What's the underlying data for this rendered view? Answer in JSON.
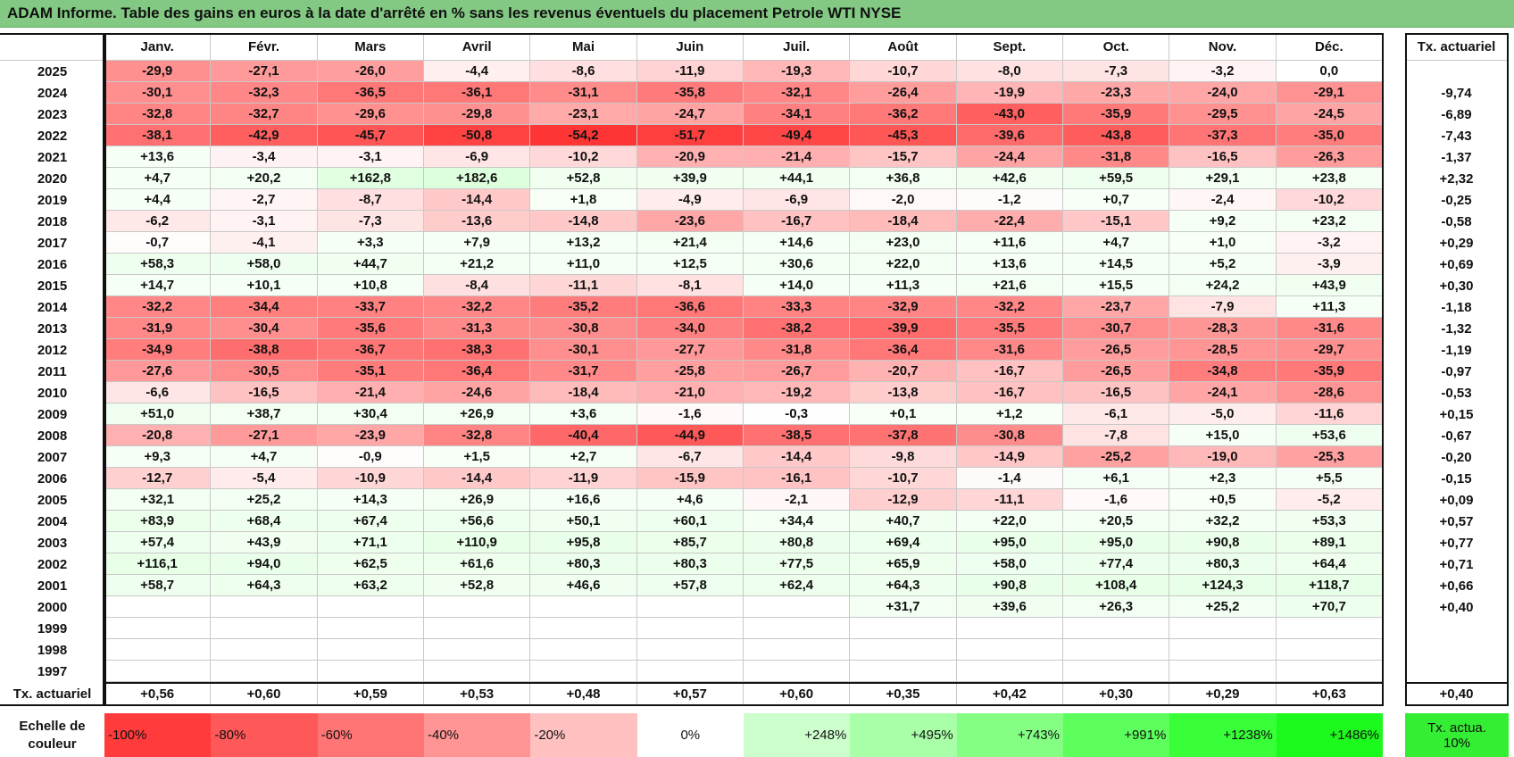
{
  "header": {
    "title": "ADAM Informe. Table des gains en euros à la date d'arrêté en % sans les revenus éventuels du placement Petrole WTI NYSE"
  },
  "table": {
    "columns": [
      "Janv.",
      "Févr.",
      "Mars",
      "Avril",
      "Mai",
      "Juin",
      "Juil.",
      "Août",
      "Sept.",
      "Oct.",
      "Nov.",
      "Déc."
    ],
    "rate_header": "Tx. actuariel",
    "rows": [
      {
        "year": "2025",
        "months": [
          "-29,9",
          "-27,1",
          "-26,0",
          "-4,4",
          "-8,6",
          "-11,9",
          "-19,3",
          "-10,7",
          "-8,0",
          "-7,3",
          "-3,2",
          "0,0"
        ],
        "rate": null
      },
      {
        "year": "2024",
        "months": [
          "-30,1",
          "-32,3",
          "-36,5",
          "-36,1",
          "-31,1",
          "-35,8",
          "-32,1",
          "-26,4",
          "-19,9",
          "-23,3",
          "-24,0",
          "-29,1"
        ],
        "rate": "-9,74"
      },
      {
        "year": "2023",
        "months": [
          "-32,8",
          "-32,7",
          "-29,6",
          "-29,8",
          "-23,1",
          "-24,7",
          "-34,1",
          "-36,2",
          "-43,0",
          "-35,9",
          "-29,5",
          "-24,5"
        ],
        "rate": "-6,89"
      },
      {
        "year": "2022",
        "months": [
          "-38,1",
          "-42,9",
          "-45,7",
          "-50,8",
          "-54,2",
          "-51,7",
          "-49,4",
          "-45,3",
          "-39,6",
          "-43,8",
          "-37,3",
          "-35,0"
        ],
        "rate": "-7,43"
      },
      {
        "year": "2021",
        "months": [
          "+13,6",
          "-3,4",
          "-3,1",
          "-6,9",
          "-10,2",
          "-20,9",
          "-21,4",
          "-15,7",
          "-24,4",
          "-31,8",
          "-16,5",
          "-26,3"
        ],
        "rate": "-1,37"
      },
      {
        "year": "2020",
        "months": [
          "+4,7",
          "+20,2",
          "+162,8",
          "+182,6",
          "+52,8",
          "+39,9",
          "+44,1",
          "+36,8",
          "+42,6",
          "+59,5",
          "+29,1",
          "+23,8"
        ],
        "rate": "+2,32"
      },
      {
        "year": "2019",
        "months": [
          "+4,4",
          "-2,7",
          "-8,7",
          "-14,4",
          "+1,8",
          "-4,9",
          "-6,9",
          "-2,0",
          "-1,2",
          "+0,7",
          "-2,4",
          "-10,2"
        ],
        "rate": "-0,25"
      },
      {
        "year": "2018",
        "months": [
          "-6,2",
          "-3,1",
          "-7,3",
          "-13,6",
          "-14,8",
          "-23,6",
          "-16,7",
          "-18,4",
          "-22,4",
          "-15,1",
          "+9,2",
          "+23,2"
        ],
        "rate": "-0,58"
      },
      {
        "year": "2017",
        "months": [
          "-0,7",
          "-4,1",
          "+3,3",
          "+7,9",
          "+13,2",
          "+21,4",
          "+14,6",
          "+23,0",
          "+11,6",
          "+4,7",
          "+1,0",
          "-3,2"
        ],
        "rate": "+0,29"
      },
      {
        "year": "2016",
        "months": [
          "+58,3",
          "+58,0",
          "+44,7",
          "+21,2",
          "+11,0",
          "+12,5",
          "+30,6",
          "+22,0",
          "+13,6",
          "+14,5",
          "+5,2",
          "-3,9"
        ],
        "rate": "+0,69"
      },
      {
        "year": "2015",
        "months": [
          "+14,7",
          "+10,1",
          "+10,8",
          "-8,4",
          "-11,1",
          "-8,1",
          "+14,0",
          "+11,3",
          "+21,6",
          "+15,5",
          "+24,2",
          "+43,9"
        ],
        "rate": "+0,30"
      },
      {
        "year": "2014",
        "months": [
          "-32,2",
          "-34,4",
          "-33,7",
          "-32,2",
          "-35,2",
          "-36,6",
          "-33,3",
          "-32,9",
          "-32,2",
          "-23,7",
          "-7,9",
          "+11,3"
        ],
        "rate": "-1,18"
      },
      {
        "year": "2013",
        "months": [
          "-31,9",
          "-30,4",
          "-35,6",
          "-31,3",
          "-30,8",
          "-34,0",
          "-38,2",
          "-39,9",
          "-35,5",
          "-30,7",
          "-28,3",
          "-31,6"
        ],
        "rate": "-1,32"
      },
      {
        "year": "2012",
        "months": [
          "-34,9",
          "-38,8",
          "-36,7",
          "-38,3",
          "-30,1",
          "-27,7",
          "-31,8",
          "-36,4",
          "-31,6",
          "-26,5",
          "-28,5",
          "-29,7"
        ],
        "rate": "-1,19"
      },
      {
        "year": "2011",
        "months": [
          "-27,6",
          "-30,5",
          "-35,1",
          "-36,4",
          "-31,7",
          "-25,8",
          "-26,7",
          "-20,7",
          "-16,7",
          "-26,5",
          "-34,8",
          "-35,9"
        ],
        "rate": "-0,97"
      },
      {
        "year": "2010",
        "months": [
          "-6,6",
          "-16,5",
          "-21,4",
          "-24,6",
          "-18,4",
          "-21,0",
          "-19,2",
          "-13,8",
          "-16,7",
          "-16,5",
          "-24,1",
          "-28,6"
        ],
        "rate": "-0,53"
      },
      {
        "year": "2009",
        "months": [
          "+51,0",
          "+38,7",
          "+30,4",
          "+26,9",
          "+3,6",
          "-1,6",
          "-0,3",
          "+0,1",
          "+1,2",
          "-6,1",
          "-5,0",
          "-11,6"
        ],
        "rate": "+0,15"
      },
      {
        "year": "2008",
        "months": [
          "-20,8",
          "-27,1",
          "-23,9",
          "-32,8",
          "-40,4",
          "-44,9",
          "-38,5",
          "-37,8",
          "-30,8",
          "-7,8",
          "+15,0",
          "+53,6"
        ],
        "rate": "-0,67"
      },
      {
        "year": "2007",
        "months": [
          "+9,3",
          "+4,7",
          "-0,9",
          "+1,5",
          "+2,7",
          "-6,7",
          "-14,4",
          "-9,8",
          "-14,9",
          "-25,2",
          "-19,0",
          "-25,3"
        ],
        "rate": "-0,20"
      },
      {
        "year": "2006",
        "months": [
          "-12,7",
          "-5,4",
          "-10,9",
          "-14,4",
          "-11,9",
          "-15,9",
          "-16,1",
          "-10,7",
          "-1,4",
          "+6,1",
          "+2,3",
          "+5,5"
        ],
        "rate": "-0,15"
      },
      {
        "year": "2005",
        "months": [
          "+32,1",
          "+25,2",
          "+14,3",
          "+26,9",
          "+16,6",
          "+4,6",
          "-2,1",
          "-12,9",
          "-11,1",
          "-1,6",
          "+0,5",
          "-5,2"
        ],
        "rate": "+0,09"
      },
      {
        "year": "2004",
        "months": [
          "+83,9",
          "+68,4",
          "+67,4",
          "+56,6",
          "+50,1",
          "+60,1",
          "+34,4",
          "+40,7",
          "+22,0",
          "+20,5",
          "+32,2",
          "+53,3"
        ],
        "rate": "+0,57"
      },
      {
        "year": "2003",
        "months": [
          "+57,4",
          "+43,9",
          "+71,1",
          "+110,9",
          "+95,8",
          "+85,7",
          "+80,8",
          "+69,4",
          "+95,0",
          "+95,0",
          "+90,8",
          "+89,1"
        ],
        "rate": "+0,77"
      },
      {
        "year": "2002",
        "months": [
          "+116,1",
          "+94,0",
          "+62,5",
          "+61,6",
          "+80,3",
          "+80,3",
          "+77,5",
          "+65,9",
          "+58,0",
          "+77,4",
          "+80,3",
          "+64,4"
        ],
        "rate": "+0,71"
      },
      {
        "year": "2001",
        "months": [
          "+58,7",
          "+64,3",
          "+63,2",
          "+52,8",
          "+46,6",
          "+57,8",
          "+62,4",
          "+64,3",
          "+90,8",
          "+108,4",
          "+124,3",
          "+118,7"
        ],
        "rate": "+0,66"
      },
      {
        "year": "2000",
        "months": [
          null,
          null,
          null,
          null,
          null,
          null,
          null,
          "+31,7",
          "+39,6",
          "+26,3",
          "+25,2",
          "+70,7"
        ],
        "rate": "+0,40"
      },
      {
        "year": "1999",
        "months": [
          null,
          null,
          null,
          null,
          null,
          null,
          null,
          null,
          null,
          null,
          null,
          null
        ],
        "rate": null
      },
      {
        "year": "1998",
        "months": [
          null,
          null,
          null,
          null,
          null,
          null,
          null,
          null,
          null,
          null,
          null,
          null
        ],
        "rate": null
      },
      {
        "year": "1997",
        "months": [
          null,
          null,
          null,
          null,
          null,
          null,
          null,
          null,
          null,
          null,
          null,
          null
        ],
        "rate": null
      }
    ],
    "footer": {
      "label": "Tx. actuariel",
      "months": [
        "+0,56",
        "+0,60",
        "+0,59",
        "+0,53",
        "+0,48",
        "+0,57",
        "+0,60",
        "+0,35",
        "+0,42",
        "+0,30",
        "+0,29",
        "+0,63"
      ],
      "rate": "+0,40"
    }
  },
  "legend": {
    "label": "Echelle de couleur",
    "scale": [
      "-100%",
      "-80%",
      "-60%",
      "-40%",
      "-20%",
      "0%",
      "+248%",
      "+495%",
      "+743%",
      "+991%",
      "+1238%",
      "+1486%"
    ],
    "rate_label": "Tx. actua. 10%"
  }
}
